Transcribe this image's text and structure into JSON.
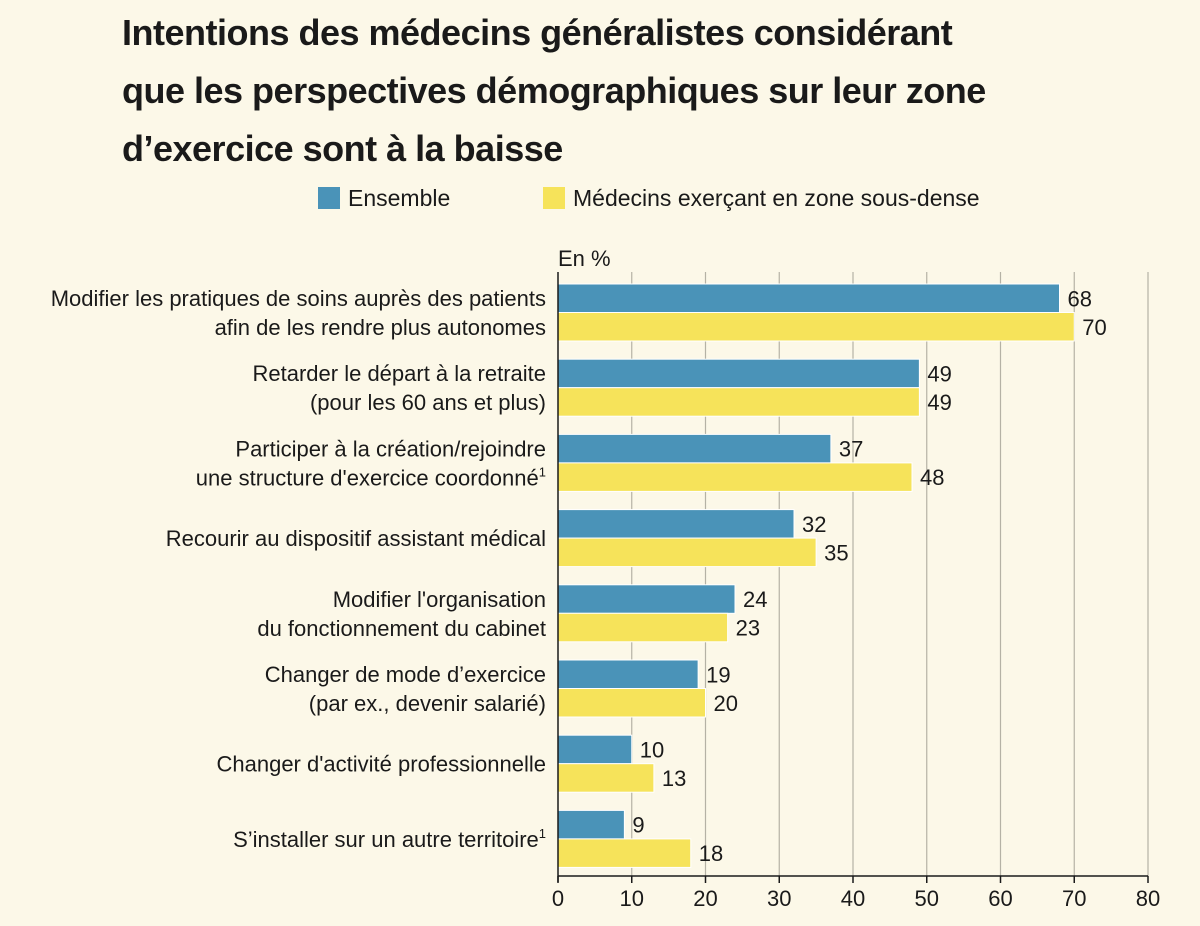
{
  "chart_data": {
    "type": "bar",
    "orientation": "horizontal",
    "title": "Intentions des médecins généralistes considérant que les perspectives démographiques sur leur zone d’exercice sont à la baisse",
    "title_lines": [
      "Intentions des médecins généralistes considérant",
      "que les perspectives démographiques sur leur zone",
      "d’exercice sont à la baisse"
    ],
    "unit_label": "En %",
    "legend_position": "top",
    "categories": [
      {
        "lines": [
          "Modifier les pratiques de soins auprès des patients",
          "afin de les rendre plus autonomes"
        ],
        "sup": ""
      },
      {
        "lines": [
          "Retarder le départ à la retraite",
          "(pour les 60 ans et plus)"
        ],
        "sup": ""
      },
      {
        "lines": [
          "Participer à la création/rejoindre",
          "une structure d'exercice coordonné"
        ],
        "sup": "1"
      },
      {
        "lines": [
          "Recourir au dispositif assistant médical"
        ],
        "sup": ""
      },
      {
        "lines": [
          "Modifier l'organisation",
          "du fonctionnement du cabinet"
        ],
        "sup": ""
      },
      {
        "lines": [
          "Changer de mode d’exercice",
          "(par ex., devenir salarié)"
        ],
        "sup": ""
      },
      {
        "lines": [
          "Changer d'activité professionnelle"
        ],
        "sup": ""
      },
      {
        "lines": [
          "S’installer sur un autre territoire"
        ],
        "sup": "1"
      }
    ],
    "series": [
      {
        "name": "Ensemble",
        "color": "#4a93b8",
        "values": [
          68,
          49,
          37,
          32,
          24,
          19,
          10,
          9
        ]
      },
      {
        "name": "Médecins exerçant en zone sous-dense",
        "color": "#f6e35a",
        "values": [
          70,
          49,
          48,
          35,
          23,
          20,
          13,
          18
        ]
      }
    ],
    "xlim": [
      0,
      80
    ],
    "xticks": [
      0,
      10,
      20,
      30,
      40,
      50,
      60,
      70,
      80
    ],
    "grid": true
  }
}
